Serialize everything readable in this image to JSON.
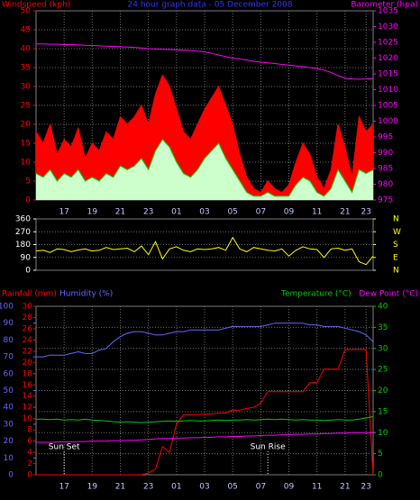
{
  "chart_data": [
    {
      "type": "line",
      "title": "24 hour graph data - 05 December 2008",
      "title_color": "#3333ff",
      "x": [
        0,
        0.5,
        1,
        1.5,
        2,
        2.5,
        3,
        3.5,
        4,
        4.5,
        5,
        5.5,
        6,
        6.5,
        7,
        7.5,
        8,
        8.5,
        9,
        9.5,
        10,
        10.5,
        11,
        11.5,
        12,
        12.5,
        13,
        13.5,
        14,
        14.5,
        15,
        15.5,
        16,
        16.5,
        17,
        17.5,
        18,
        18.5,
        19,
        19.5,
        20,
        20.5,
        21,
        21.5,
        22,
        22.5,
        23,
        23.5,
        24
      ],
      "xlim": [
        0,
        24
      ],
      "xticks": [
        {
          "value": 2,
          "label": "17"
        },
        {
          "value": 4,
          "label": "19"
        },
        {
          "value": 6,
          "label": "21"
        },
        {
          "value": 8,
          "label": "23"
        },
        {
          "value": 10,
          "label": "01"
        },
        {
          "value": 12,
          "label": "03"
        },
        {
          "value": 14,
          "label": "05"
        },
        {
          "value": 16,
          "label": "07"
        },
        {
          "value": 18,
          "label": "09"
        },
        {
          "value": 20,
          "label": "11"
        },
        {
          "value": 22,
          "label": "21"
        },
        {
          "value": 23.5,
          "label": "23"
        }
      ],
      "xtick_color": "#c0c8ff",
      "ylim": [
        0,
        50
      ],
      "yticks": [
        0,
        5,
        10,
        15,
        20,
        25,
        30,
        35,
        40,
        45,
        50
      ],
      "y2lim": [
        975,
        1035
      ],
      "y2ticks": [
        975,
        980,
        985,
        990,
        995,
        1000,
        1005,
        1010,
        1015,
        1020,
        1025,
        1030,
        1035
      ],
      "tick_colors": {
        "y": "#ff0000",
        "y2": "#ff00ff"
      },
      "grid": "y",
      "series": [
        {
          "name": "Windspeed (kph)",
          "color": "#ff0000",
          "fill": "#ff0000",
          "values": [
            18,
            15,
            20,
            12,
            16,
            14,
            19,
            11,
            15,
            13,
            18,
            16,
            22,
            20,
            22,
            25,
            20,
            28,
            33,
            30,
            24,
            18,
            16,
            20,
            24,
            27,
            30,
            25,
            20,
            12,
            6,
            3,
            2,
            5,
            3,
            2,
            4,
            10,
            15,
            12,
            6,
            3,
            8,
            20,
            14,
            6,
            22,
            18,
            20
          ]
        },
        {
          "color": "#00dd00",
          "fill": "#ccffcc",
          "values": [
            7,
            6,
            8,
            5,
            7,
            6,
            8,
            5,
            6,
            5,
            7,
            6,
            9,
            8,
            9,
            11,
            8,
            13,
            16,
            14,
            10,
            7,
            6,
            8,
            11,
            13,
            15,
            11,
            8,
            5,
            2,
            1,
            1,
            2,
            1,
            1,
            1,
            4,
            6,
            5,
            2,
            1,
            3,
            8,
            5,
            2,
            8,
            7,
            8
          ]
        },
        {
          "name": "Barometer (hpa)",
          "color": "#ff00ff",
          "axis": "y2",
          "values": [
            1024.5,
            1024.5,
            1024.4,
            1024.4,
            1024.3,
            1024.3,
            1024.2,
            1024.1,
            1024,
            1023.9,
            1023.8,
            1023.7,
            1023.6,
            1023.5,
            1023.4,
            1023.2,
            1023,
            1022.9,
            1022.8,
            1022.7,
            1022.6,
            1022.5,
            1022.4,
            1022.2,
            1022,
            1021.5,
            1021,
            1020.5,
            1020,
            1019.7,
            1019.4,
            1019,
            1018.7,
            1018.5,
            1018.3,
            1018,
            1017.8,
            1017.5,
            1017.3,
            1017,
            1016.7,
            1016.2,
            1015.5,
            1014.5,
            1013.6,
            1013.4,
            1013.3,
            1013.4,
            1013.5
          ]
        }
      ]
    },
    {
      "type": "line",
      "x": [
        0,
        0.5,
        1,
        1.5,
        2,
        2.5,
        3,
        3.5,
        4,
        4.5,
        5,
        5.5,
        6,
        6.5,
        7,
        7.5,
        8,
        8.5,
        9,
        9.5,
        10,
        10.5,
        11,
        11.5,
        12,
        12.5,
        13,
        13.5,
        14,
        14.5,
        15,
        15.5,
        16,
        16.5,
        17,
        17.5,
        18,
        18.5,
        19,
        19.5,
        20,
        20.5,
        21,
        21.5,
        22,
        22.5,
        23,
        23.5,
        24
      ],
      "xlim": [
        0,
        24
      ],
      "ylim": [
        0,
        360
      ],
      "yticks": [
        0,
        90,
        180,
        270,
        360
      ],
      "y2lim": [
        0,
        360
      ],
      "y2ticks": [
        {
          "value": 0,
          "label": "N"
        },
        {
          "value": 90,
          "label": "E"
        },
        {
          "value": 180,
          "label": "S"
        },
        {
          "value": 270,
          "label": "W"
        },
        {
          "value": 360,
          "label": "N"
        }
      ],
      "tick_colors": {
        "y": "#ffffff",
        "y2": "#ffff00"
      },
      "grid": "y",
      "series": [
        {
          "color": "#ffff00",
          "values": [
            135,
            140,
            125,
            150,
            145,
            130,
            142,
            150,
            135,
            140,
            160,
            145,
            150,
            155,
            130,
            170,
            110,
            200,
            80,
            150,
            165,
            140,
            130,
            150,
            145,
            150,
            160,
            140,
            230,
            150,
            130,
            160,
            150,
            140,
            135,
            150,
            100,
            140,
            165,
            150,
            145,
            90,
            150,
            155,
            140,
            150,
            60,
            40,
            100
          ]
        }
      ]
    },
    {
      "type": "line",
      "x": [
        0,
        0.5,
        1,
        1.5,
        2,
        2.5,
        3,
        3.5,
        4,
        4.5,
        5,
        5.5,
        6,
        6.5,
        7,
        7.5,
        8,
        8.5,
        9,
        9.5,
        10,
        10.5,
        11,
        11.5,
        12,
        12.5,
        13,
        13.5,
        14,
        14.5,
        15,
        15.5,
        16,
        16.5,
        17,
        17.5,
        18,
        18.5,
        19,
        19.5,
        20,
        20.5,
        21,
        21.5,
        22,
        22.5,
        23,
        23.5,
        24
      ],
      "xlim": [
        0,
        24
      ],
      "xticks": [
        {
          "value": 2,
          "label": "17"
        },
        {
          "value": 4,
          "label": "19"
        },
        {
          "value": 6,
          "label": "21"
        },
        {
          "value": 8,
          "label": "23"
        },
        {
          "value": 10,
          "label": "01"
        },
        {
          "value": 12,
          "label": "03"
        },
        {
          "value": 14,
          "label": "05"
        },
        {
          "value": 16,
          "label": "07"
        },
        {
          "value": 18,
          "label": "09"
        },
        {
          "value": 20,
          "label": "11"
        },
        {
          "value": 22,
          "label": "21"
        },
        {
          "value": 23.5,
          "label": "23"
        }
      ],
      "xtick_color": "#c0c8ff",
      "ylim": [
        0,
        100
      ],
      "yticks": [
        0,
        10,
        20,
        30,
        40,
        50,
        60,
        70,
        80,
        90,
        100
      ],
      "y3lim": [
        0,
        30
      ],
      "y3ticks": [
        0,
        2,
        4,
        6,
        8,
        10,
        12,
        14,
        16,
        18,
        20,
        22,
        24,
        26,
        28,
        30
      ],
      "y2lim": [
        0,
        40
      ],
      "y2ticks": [
        0,
        5,
        10,
        15,
        20,
        25,
        30,
        35,
        40
      ],
      "tick_colors": {
        "y": "#6666ff",
        "y3": "#ff0000",
        "y2": "#00cc00"
      },
      "grid": "y2",
      "annotations": [
        {
          "text": "Sun Set",
          "x": 2
        },
        {
          "text": "Sun Rise",
          "x": 16.5
        }
      ],
      "series": [
        {
          "name": "Rainfall (mm)",
          "color": "#ff0000",
          "axis": "y3",
          "values": [
            0,
            0,
            0,
            0,
            0,
            0,
            0,
            0,
            0,
            0,
            0,
            0,
            0,
            0,
            0,
            0,
            0.3,
            1,
            5,
            4,
            9,
            10.7,
            10.7,
            10.7,
            10.8,
            10.8,
            11,
            11,
            11.5,
            11.5,
            11.8,
            12,
            12.8,
            14.8,
            14.8,
            14.8,
            14.8,
            14.8,
            14.8,
            16.4,
            16.4,
            18.8,
            18.8,
            18.8,
            22.3,
            22.3,
            22.3,
            22.3,
            0
          ]
        },
        {
          "name": "Humidity (%)",
          "color": "#6666ff",
          "values": [
            70,
            70,
            71,
            71,
            71,
            72,
            73,
            72,
            72,
            74,
            75,
            79,
            82,
            84,
            85,
            85,
            84,
            83,
            83,
            84,
            85,
            85,
            86,
            86,
            86,
            86,
            86,
            87,
            88,
            88,
            88,
            88,
            88,
            89,
            90,
            90,
            90,
            90,
            90,
            89,
            89,
            88,
            88,
            88,
            87,
            86,
            85,
            83,
            79
          ]
        },
        {
          "name": "Temperature (°C)",
          "color": "#00cc00",
          "axis": "y2",
          "values": [
            13.2,
            13.2,
            13.1,
            13.2,
            13,
            13.1,
            13,
            13.2,
            13,
            12.9,
            12.8,
            12.6,
            12.5,
            12.6,
            12.5,
            12.4,
            12.5,
            12.6,
            12.7,
            12.8,
            12.7,
            12.8,
            12.9,
            12.8,
            12.8,
            12.9,
            13,
            12.9,
            13,
            13,
            13.1,
            13,
            13.1,
            13.2,
            13.1,
            13.2,
            13.1,
            13,
            13.1,
            13,
            13,
            12.9,
            13,
            13.1,
            13,
            13,
            13.2,
            13.5,
            13.8
          ]
        },
        {
          "name": "Dew Point (°C)",
          "color": "#ff00ff",
          "axis": "y2",
          "values": [
            7.7,
            7.7,
            7.7,
            7.8,
            7.8,
            7.8,
            7.9,
            7.9,
            8,
            8,
            8,
            8.1,
            8.1,
            8.2,
            8.2,
            8.3,
            8.4,
            8.5,
            8.6,
            8.6,
            8.7,
            8.7,
            8.8,
            8.8,
            8.9,
            8.9,
            9,
            9,
            9.1,
            9.1,
            9.2,
            9.2,
            9.3,
            9.4,
            9.4,
            9.5,
            9.5,
            9.6,
            9.6,
            9.7,
            9.7,
            9.8,
            9.8,
            9.9,
            9.9,
            10,
            10,
            10,
            10
          ]
        }
      ]
    }
  ]
}
